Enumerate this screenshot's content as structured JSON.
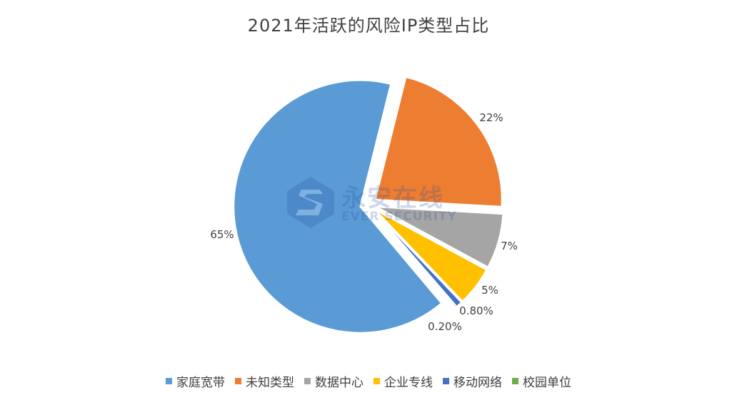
{
  "chart_data": {
    "type": "pie",
    "title": "2021年活跃的风险IP类型占比",
    "categories": [
      "家庭宽带",
      "未知类型",
      "数据中心",
      "企业专线",
      "移动网络",
      "校园单位"
    ],
    "values": [
      65,
      22,
      7,
      5,
      0.8,
      0.2
    ],
    "data_labels": [
      "65%",
      "22%",
      "7%",
      "5%",
      "0.80%",
      "0.20%"
    ],
    "colors": [
      "#5b9bd5",
      "#ed7d31",
      "#a5a5a5",
      "#ffc000",
      "#4472c4",
      "#70ad47"
    ],
    "legend_position": "bottom",
    "exploded": true
  },
  "watermark": {
    "text_cn": "永安在线",
    "text_en": "EVER SECURITY",
    "icon": "ever-security-logo-icon"
  }
}
